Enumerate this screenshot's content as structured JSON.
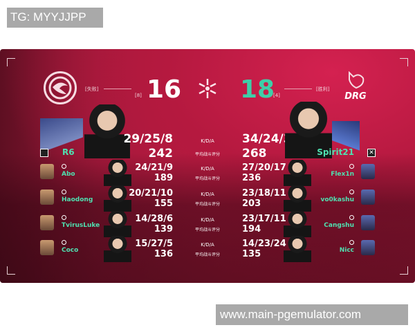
{
  "watermarks": {
    "top": "TG: MYYJJPP",
    "bottom": "www.main-pgemulator.com"
  },
  "colors": {
    "winner_score": "#3ecfa8",
    "player_name": "#4fe0b0",
    "background": "#b71c40"
  },
  "left_team": {
    "logo": "dragon-circle-logo",
    "result": "[失败]",
    "score": "16",
    "sub_score": "[8]",
    "mvp": {
      "name": "R6",
      "kda": "29/25/8",
      "acs": "242"
    },
    "players": [
      {
        "name": "Abo",
        "kda": "24/21/9",
        "acs": "189"
      },
      {
        "name": "Haodong",
        "kda": "20/21/10",
        "acs": "155"
      },
      {
        "name": "TvirusLuke",
        "kda": "14/28/6",
        "acs": "139"
      },
      {
        "name": "Coco",
        "kda": "15/27/5",
        "acs": "136"
      }
    ]
  },
  "right_team": {
    "logo_text": "DRG",
    "result": "[胜利]",
    "score": "18",
    "sub_score": "[4]",
    "mvp": {
      "name": "Spirit21",
      "kda": "34/24/3",
      "acs": "268"
    },
    "players": [
      {
        "name": "Flex1n",
        "kda": "27/20/17",
        "acs": "236"
      },
      {
        "name": "vo0kashu",
        "kda": "23/18/11",
        "acs": "203"
      },
      {
        "name": "Cangshu",
        "kda": "23/17/11",
        "acs": "194"
      },
      {
        "name": "Nicc",
        "kda": "14/23/24",
        "acs": "135"
      }
    ]
  },
  "center": {
    "kda_label": "K/D/A",
    "acs_label": "平均战斗评分",
    "icon": "valorant-star-icon"
  }
}
